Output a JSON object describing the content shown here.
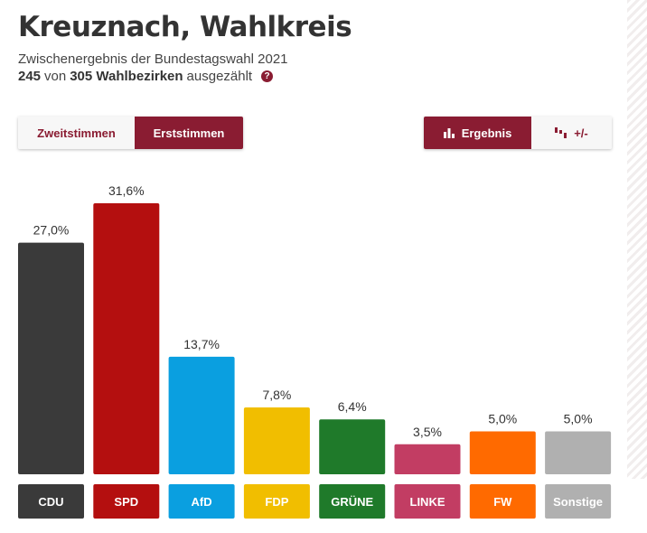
{
  "header": {
    "title": "Kreuznach, Wahlkreis",
    "subtitle": "Zwischenergebnis der Bundestagswahl 2021",
    "counted": "245",
    "von": "von",
    "total": "305 Wahlbezirken",
    "suffix": "ausgezählt",
    "help_icon": "question-circle-icon"
  },
  "toggles": {
    "zweitstimmen": "Zweitstimmen",
    "erststimmen": "Erststimmen",
    "ergebnis": "Ergebnis",
    "diff": "+/-",
    "ergebnis_icon": "bar-chart-icon",
    "diff_icon": "diff-chart-icon"
  },
  "colors": {
    "accent": "#8a1c32",
    "CDU": "#3a3a3a",
    "SPD": "#b40f0f",
    "AfD": "#0a9fe0",
    "FDP": "#f1be00",
    "GRÜNE": "#1f7a2a",
    "LINKE": "#c23d63",
    "FW": "#ff6a00",
    "Sonstige": "#b0b0b0"
  },
  "chart_data": {
    "type": "bar",
    "categories": [
      "CDU",
      "SPD",
      "AfD",
      "FDP",
      "GRÜNE",
      "LINKE",
      "FW",
      "Sonstige"
    ],
    "values": [
      27.0,
      31.6,
      13.7,
      7.8,
      6.4,
      3.5,
      5.0,
      5.0
    ],
    "value_labels": [
      "27,0%",
      "31,6%",
      "13,7%",
      "7,8%",
      "6,4%",
      "3,5%",
      "5,0%",
      "5,0%"
    ],
    "title": "",
    "xlabel": "",
    "ylabel": "",
    "ylim": [
      0,
      31.6
    ],
    "grid": false,
    "legend": "none"
  }
}
